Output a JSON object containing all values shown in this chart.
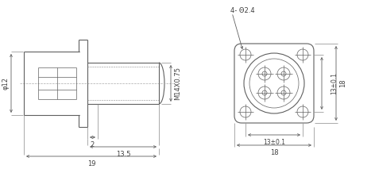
{
  "line_color": "#606060",
  "dim_color": "#606060",
  "text_color": "#404040",
  "fig_width": 4.72,
  "fig_height": 2.13,
  "annotations": {
    "phi12": "φ12",
    "m14x075": "M14X0.75",
    "dim2": "2",
    "dim13_5": "13.5",
    "dim19": "19",
    "holes": "4- Θ2.4",
    "dim13_01_h": "13±0.1",
    "dim13_01_v": "13±0.1",
    "dim18_h": "18",
    "dim18_v": "18"
  }
}
